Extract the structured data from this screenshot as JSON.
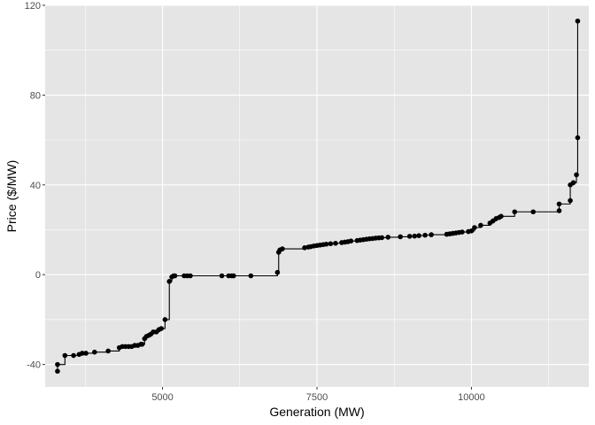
{
  "chart_data": {
    "type": "line",
    "subtype": "step-with-points",
    "title": "",
    "xlabel": "Generation (MW)",
    "ylabel": "Price ($/MW)",
    "xlim": [
      3100,
      11900
    ],
    "ylim": [
      -50,
      120
    ],
    "xticks": [
      5000,
      7500,
      10000
    ],
    "xtick_labels": [
      "5000",
      "7500",
      "10000"
    ],
    "yticks": [
      -40,
      0,
      40,
      80,
      120
    ],
    "ytick_labels": [
      "-40",
      "0",
      "40",
      "80",
      "120"
    ],
    "grid": true,
    "legend": "none",
    "colors": {
      "panel_background": "#e5e5e5",
      "grid_major": "#ffffff",
      "series": "#000000"
    },
    "series": [
      {
        "values_xy": [
          [
            3300,
            -43
          ],
          [
            3300,
            -40
          ],
          [
            3420,
            -36
          ],
          [
            3560,
            -36
          ],
          [
            3650,
            -35.5
          ],
          [
            3700,
            -35
          ],
          [
            3760,
            -35
          ],
          [
            3900,
            -34.5
          ],
          [
            4120,
            -34
          ],
          [
            4300,
            -32.5
          ],
          [
            4350,
            -32
          ],
          [
            4400,
            -32
          ],
          [
            4450,
            -32
          ],
          [
            4500,
            -32
          ],
          [
            4550,
            -31.5
          ],
          [
            4600,
            -31.5
          ],
          [
            4650,
            -31
          ],
          [
            4670,
            -31
          ],
          [
            4710,
            -28.5
          ],
          [
            4740,
            -27.5
          ],
          [
            4780,
            -27
          ],
          [
            4810,
            -26.5
          ],
          [
            4850,
            -25.5
          ],
          [
            4900,
            -25.5
          ],
          [
            4940,
            -24.5
          ],
          [
            4980,
            -24
          ],
          [
            5040,
            -20
          ],
          [
            5110,
            -3
          ],
          [
            5150,
            -1
          ],
          [
            5180,
            -0.5
          ],
          [
            5200,
            -0.5
          ],
          [
            5350,
            -0.5
          ],
          [
            5400,
            -0.5
          ],
          [
            5450,
            -0.5
          ],
          [
            5960,
            -0.5
          ],
          [
            6070,
            -0.5
          ],
          [
            6120,
            -0.5
          ],
          [
            6150,
            -0.5
          ],
          [
            6430,
            -0.5
          ],
          [
            6860,
            1
          ],
          [
            6880,
            10
          ],
          [
            6900,
            11
          ],
          [
            6940,
            11.5
          ],
          [
            7300,
            12
          ],
          [
            7360,
            12.3
          ],
          [
            7400,
            12.5
          ],
          [
            7450,
            12.8
          ],
          [
            7500,
            13
          ],
          [
            7550,
            13.2
          ],
          [
            7600,
            13.4
          ],
          [
            7650,
            13.6
          ],
          [
            7720,
            13.8
          ],
          [
            7800,
            14
          ],
          [
            7900,
            14.3
          ],
          [
            7950,
            14.5
          ],
          [
            8000,
            14.7
          ],
          [
            8050,
            15
          ],
          [
            8150,
            15.2
          ],
          [
            8200,
            15.4
          ],
          [
            8250,
            15.6
          ],
          [
            8300,
            15.8
          ],
          [
            8350,
            16
          ],
          [
            8400,
            16.1
          ],
          [
            8450,
            16.3
          ],
          [
            8500,
            16.4
          ],
          [
            8550,
            16.5
          ],
          [
            8650,
            16.7
          ],
          [
            8850,
            16.9
          ],
          [
            9000,
            17.1
          ],
          [
            9080,
            17.2
          ],
          [
            9150,
            17.4
          ],
          [
            9250,
            17.6
          ],
          [
            9350,
            17.8
          ],
          [
            9600,
            18
          ],
          [
            9650,
            18.2
          ],
          [
            9700,
            18.4
          ],
          [
            9750,
            18.6
          ],
          [
            9800,
            18.8
          ],
          [
            9850,
            19
          ],
          [
            9950,
            19.2
          ],
          [
            10000,
            19.5
          ],
          [
            10050,
            21
          ],
          [
            10150,
            22
          ],
          [
            10300,
            23
          ],
          [
            10350,
            24
          ],
          [
            10400,
            25
          ],
          [
            10450,
            25.5
          ],
          [
            10480,
            26
          ],
          [
            10700,
            28
          ],
          [
            11000,
            28
          ],
          [
            11420,
            28.5
          ],
          [
            11420,
            31.5
          ],
          [
            11600,
            33
          ],
          [
            11600,
            40
          ],
          [
            11650,
            41
          ],
          [
            11700,
            44.5
          ],
          [
            11720,
            61
          ],
          [
            11720,
            113
          ]
        ]
      }
    ]
  }
}
